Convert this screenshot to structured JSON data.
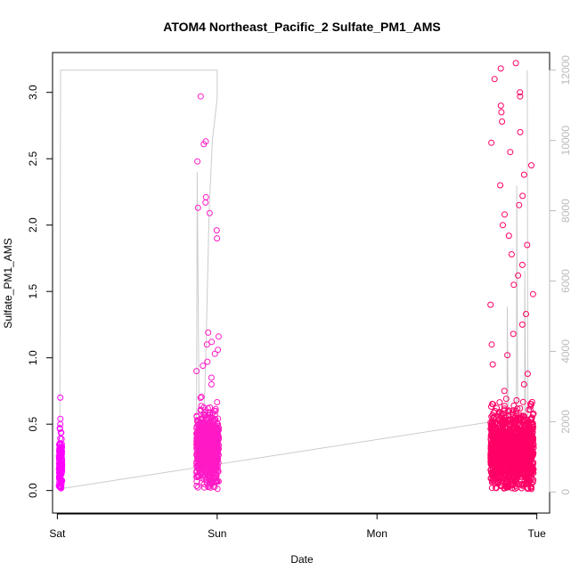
{
  "chart_data": {
    "type": "scatter",
    "title": "ATOM4 Northeast_Pacific_2 Sulfate_PM1_AMS",
    "xlabel": "Date",
    "ylabel": "Sulfate_PM1_AMS",
    "x_ticks": [
      "Sat",
      "Sun",
      "Mon",
      "Tue"
    ],
    "xlim_days": [
      -0.03,
      3.08
    ],
    "ylim": [
      -0.17,
      3.3
    ],
    "y_ticks": [
      0.0,
      0.5,
      1.0,
      1.5,
      2.0,
      2.5,
      3.0
    ],
    "y_tick_labels": [
      "0.0",
      "0.5",
      "1.0",
      "1.5",
      "2.0",
      "2.5",
      "3.0"
    ],
    "y2_label": "",
    "y2lim": [
      -600,
      12500
    ],
    "y2_ticks": [
      0,
      2000,
      4000,
      6000,
      8000,
      10000,
      12000
    ],
    "y2_tick_labels": [
      "0",
      "2000",
      "4000",
      "6000",
      "8000",
      "10000",
      "12000"
    ],
    "grid": false,
    "segments": [
      {
        "x_range": [
          0.01,
          0.03
        ],
        "baseline": 0.2,
        "spread": 0.1,
        "n": 160,
        "max": 0.7,
        "outliers": [
          0.7,
          0.54,
          0.5,
          0.47
        ],
        "color": "#ff00ff"
      },
      {
        "x_range": [
          0.87,
          1.01
        ],
        "baseline": 0.32,
        "spread": 0.12,
        "n": 900,
        "max": 2.97,
        "outliers": [
          2.97,
          2.63,
          2.61,
          2.48,
          2.21,
          2.17,
          2.13,
          2.09,
          1.96,
          1.9,
          1.19,
          1.16,
          1.12,
          1.1,
          1.06,
          1.03,
          0.97,
          0.94,
          0.9,
          0.85,
          0.8
        ],
        "color": "#ff1ac6"
      },
      {
        "x_range": [
          2.71,
          2.98
        ],
        "baseline": 0.3,
        "spread": 0.14,
        "n": 1400,
        "max": 3.22,
        "outliers": [
          3.22,
          3.18,
          3.1,
          3.0,
          2.97,
          2.9,
          2.85,
          2.78,
          2.7,
          2.62,
          2.55,
          2.45,
          2.38,
          2.3,
          2.22,
          2.15,
          2.08,
          2.0,
          1.92,
          1.85,
          1.78,
          1.7,
          1.62,
          1.55,
          1.48,
          1.4,
          1.33,
          1.25,
          1.18,
          1.1,
          1.02,
          0.95,
          0.88,
          0.8,
          0.75
        ],
        "color": "#ff0066"
      }
    ],
    "secondary_series": {
      "color": "#cccccc",
      "description_values": [
        {
          "x": 0.01,
          "y": 12000
        },
        {
          "x": 0.02,
          "y": 12000
        },
        {
          "x": 1.0,
          "y": 12000
        },
        {
          "x": 0.03,
          "y": 100
        },
        {
          "x": 2.72,
          "y": 1900
        }
      ]
    }
  }
}
